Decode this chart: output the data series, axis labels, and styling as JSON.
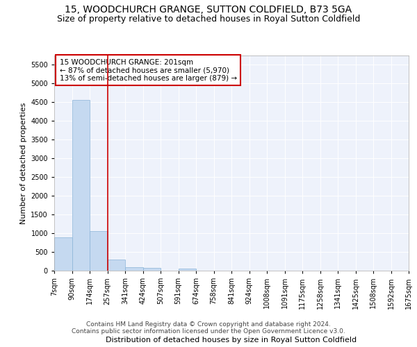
{
  "title": "15, WOODCHURCH GRANGE, SUTTON COLDFIELD, B73 5GA",
  "subtitle": "Size of property relative to detached houses in Royal Sutton Coldfield",
  "xlabel": "Distribution of detached houses by size in Royal Sutton Coldfield",
  "ylabel": "Number of detached properties",
  "footer_line1": "Contains HM Land Registry data © Crown copyright and database right 2024.",
  "footer_line2": "Contains public sector information licensed under the Open Government Licence v3.0.",
  "annotation_line1": "15 WOODCHURCH GRANGE: 201sqm",
  "annotation_line2": "← 87% of detached houses are smaller (5,970)",
  "annotation_line3": "13% of semi-detached houses are larger (879) →",
  "bar_values": [
    890,
    4560,
    1060,
    290,
    90,
    75,
    0,
    60,
    0,
    0,
    0,
    0,
    0,
    0,
    0,
    0,
    0,
    0,
    0,
    0
  ],
  "bin_labels": [
    "7sqm",
    "90sqm",
    "174sqm",
    "257sqm",
    "341sqm",
    "424sqm",
    "507sqm",
    "591sqm",
    "674sqm",
    "758sqm",
    "841sqm",
    "924sqm",
    "1008sqm",
    "1091sqm",
    "1175sqm",
    "1258sqm",
    "1341sqm",
    "1425sqm",
    "1508sqm",
    "1592sqm",
    "1675sqm"
  ],
  "bar_color": "#c5d9f0",
  "bar_edge_color": "#8ab4d8",
  "red_line_x": 2.5,
  "red_line_color": "#cc0000",
  "annotation_box_color": "#cc0000",
  "ylim_max": 5750,
  "yticks": [
    0,
    500,
    1000,
    1500,
    2000,
    2500,
    3000,
    3500,
    4000,
    4500,
    5000,
    5500
  ],
  "bg_color": "#eef2fb",
  "grid_color": "#ffffff",
  "title_fontsize": 10,
  "subtitle_fontsize": 9,
  "axis_label_fontsize": 8,
  "tick_fontsize": 7,
  "footer_fontsize": 6.5,
  "annotation_fontsize": 7.5
}
